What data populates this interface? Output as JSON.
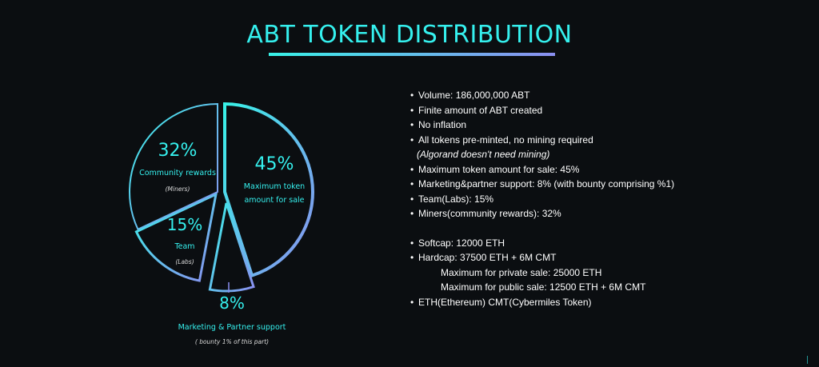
{
  "chart_data": {
    "type": "pie",
    "title": "ABT TOKEN DISTRIBUTION",
    "slices": [
      {
        "value": 45,
        "label": "45%",
        "name_lines": [
          "Maximum token",
          "amount for sale"
        ],
        "note": ""
      },
      {
        "value": 8,
        "label": "8%",
        "name_lines": [
          "Marketing & Partner support"
        ],
        "note": "( bounty 1% of this part)"
      },
      {
        "value": 15,
        "label": "15%",
        "name_lines": [
          "Team"
        ],
        "note": "(Labs)"
      },
      {
        "value": 32,
        "label": "32%",
        "name_lines": [
          "Community rewards"
        ],
        "note": "(Miners)"
      }
    ]
  },
  "colors": {
    "accent": "#35f0ee",
    "accent_end": "#8b8ff0",
    "background": "#0b0e11",
    "text": "#ffffff"
  },
  "info": {
    "lines": [
      {
        "kind": "bullet",
        "text": "Volume: 186,000,000 ABT"
      },
      {
        "kind": "bullet",
        "text": "Finite amount of ABT created"
      },
      {
        "kind": "bullet",
        "text": "No inflation"
      },
      {
        "kind": "bullet",
        "text": "All tokens pre-minted, no mining required"
      },
      {
        "kind": "note",
        "text": "(Algorand doesn't need mining)"
      },
      {
        "kind": "bullet",
        "text": "Maximum token amount for sale: 45%"
      },
      {
        "kind": "bullet",
        "text": "Marketing&partner support: 8% (with bounty comprising %1)"
      },
      {
        "kind": "bullet",
        "text": "Team(Labs): 15%"
      },
      {
        "kind": "bullet",
        "text": "Miners(community rewards): 32%"
      },
      {
        "kind": "gap",
        "text": ""
      },
      {
        "kind": "bullet",
        "text": "Softcap: 12000 ETH"
      },
      {
        "kind": "bullet",
        "text": "Hardcap: 37500 ETH + 6M CMT"
      },
      {
        "kind": "indent",
        "text": "Maximum for private sale: 25000 ETH"
      },
      {
        "kind": "indent",
        "text": "Maximum for public sale: 12500 ETH + 6M CMT"
      },
      {
        "kind": "bullet",
        "text": "ETH(Ethereum) CMT(Cybermiles Token)"
      }
    ]
  }
}
